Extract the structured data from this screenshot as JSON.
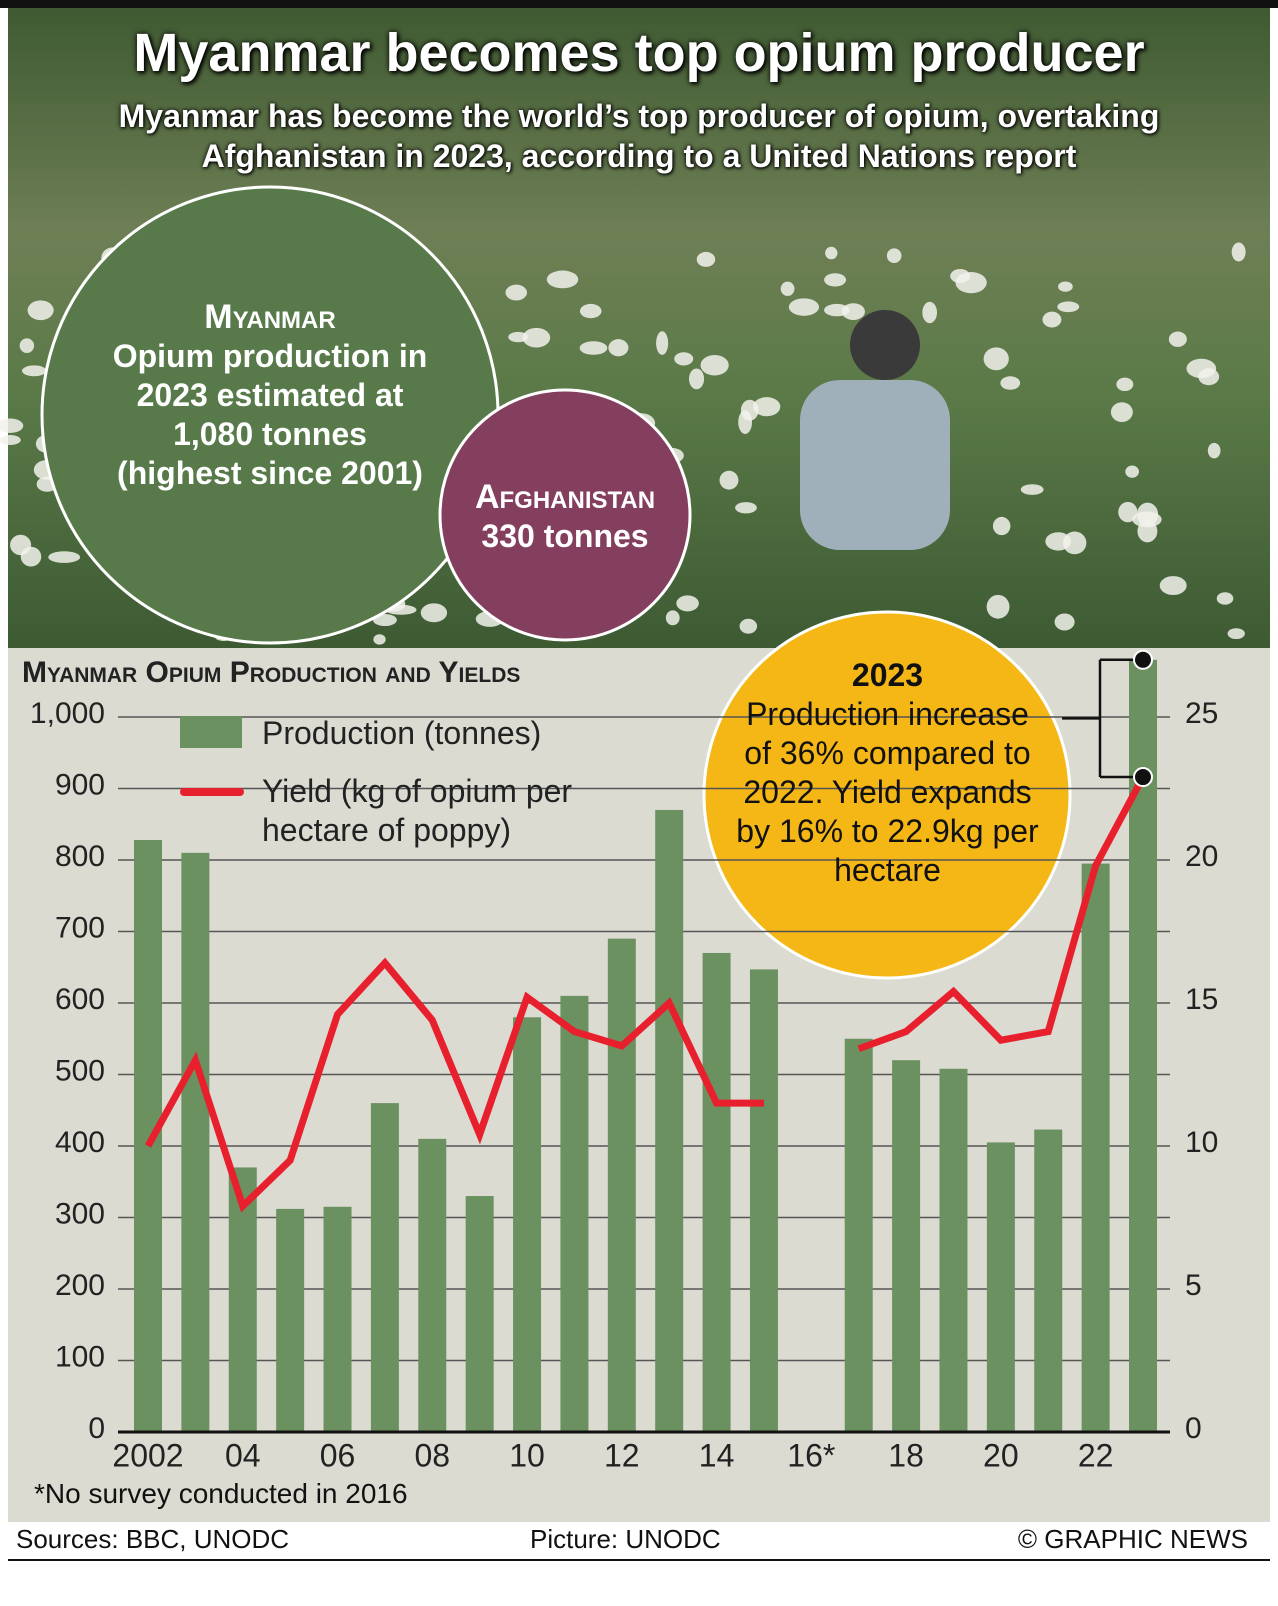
{
  "title": "Myanmar becomes top opium producer",
  "subtitle": "Myanmar has become the world’s top producer of opium, overtaking Afghanistan in 2023, according to a United Nations report",
  "myanmar_callout": {
    "heading": "Myanmar",
    "text": "Opium production in 2023 estimated at 1,080 tonnes (highest since 2001)"
  },
  "afghanistan_callout": {
    "heading": "Afghanistan",
    "text": "330 tonnes"
  },
  "chart_data": {
    "type": "bar",
    "title": "Myanmar Opium Production and Yields",
    "categories": [
      "2002",
      null,
      "04",
      null,
      "06",
      null,
      "08",
      null,
      "10",
      null,
      "12",
      null,
      "14",
      null,
      "16*",
      null,
      "18",
      null,
      "20",
      null,
      "22",
      null
    ],
    "series": [
      {
        "name": "Production (tonnes)",
        "type": "bar",
        "color": "#6b9160",
        "values": [
          828,
          810,
          370,
          312,
          315,
          460,
          410,
          330,
          580,
          610,
          690,
          870,
          670,
          647,
          null,
          550,
          520,
          508,
          405,
          423,
          795,
          1080
        ]
      },
      {
        "name": "Yield (kg of opium per hectare of poppy)",
        "type": "line",
        "axis": "y2",
        "color": "#e8202e",
        "values": [
          10,
          13,
          7.9,
          9.5,
          14.6,
          16.4,
          14.4,
          10.4,
          15.2,
          14.0,
          13.5,
          15.0,
          11.5,
          11.5,
          null,
          13.4,
          14.0,
          15.4,
          13.7,
          14.0,
          19.8,
          22.9
        ]
      }
    ],
    "ylim": [
      0,
      1000
    ],
    "yticks": [
      0,
      100,
      200,
      300,
      400,
      500,
      600,
      700,
      800,
      900,
      {
        "value": 1000,
        "label": "1,000"
      }
    ],
    "y2lim": [
      0,
      25
    ],
    "y2ticks": [
      0,
      5,
      10,
      15,
      20,
      25
    ],
    "grid": true,
    "annotation": {
      "heading": "2023",
      "text": "Production increase of 36% compared to 2022. Yield expands by 16% to 22.9kg per hectare"
    },
    "footnote": "*No survey conducted in 2016"
  },
  "footer": {
    "sources": "Sources: BBC, UNODC",
    "picture": "Picture: UNODC",
    "credit": "© GRAPHIC NEWS"
  }
}
